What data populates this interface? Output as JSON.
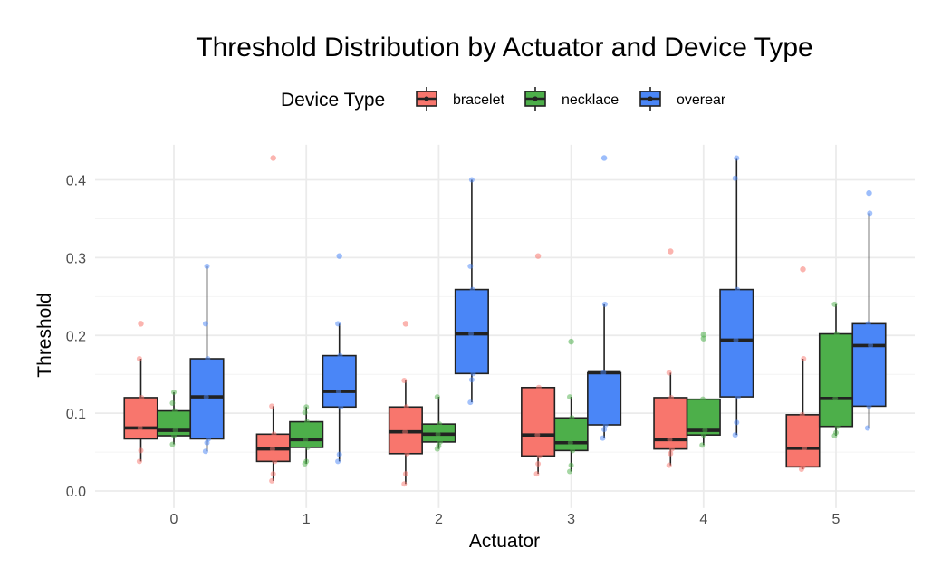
{
  "chart_data": {
    "type": "boxplot",
    "title": "Threshold Distribution by Actuator and Device Type",
    "xlabel": "Actuator",
    "ylabel": "Threshold",
    "categories": [
      "0",
      "1",
      "2",
      "3",
      "4",
      "5"
    ],
    "y_ticks": [
      "0.0",
      "0.1",
      "0.2",
      "0.3",
      "0.4"
    ],
    "ylim": [
      -0.022,
      0.445
    ],
    "grid": true,
    "legend": {
      "title": "Device Type",
      "position": "top"
    },
    "colors": {
      "bracelet": "#F8766D",
      "necklace": "#4DAF4A",
      "overear": "#4A86F7",
      "line": "#222222",
      "grid": "#EBEBEB"
    },
    "series": [
      {
        "name": "bracelet",
        "boxes": [
          {
            "min": 0.038,
            "q1": 0.067,
            "median": 0.081,
            "q3": 0.12,
            "max": 0.17,
            "outliers": [
              0.215
            ]
          },
          {
            "min": 0.013,
            "q1": 0.038,
            "median": 0.054,
            "q3": 0.073,
            "max": 0.109,
            "outliers": [
              0.428
            ]
          },
          {
            "min": 0.009,
            "q1": 0.048,
            "median": 0.076,
            "q3": 0.108,
            "max": 0.142,
            "outliers": [
              0.215
            ]
          },
          {
            "min": 0.022,
            "q1": 0.045,
            "median": 0.072,
            "q3": 0.133,
            "max": 0.133,
            "outliers": [
              0.302
            ]
          },
          {
            "min": 0.033,
            "q1": 0.054,
            "median": 0.066,
            "q3": 0.12,
            "max": 0.152,
            "outliers": [
              0.308
            ]
          },
          {
            "min": 0.028,
            "q1": 0.031,
            "median": 0.055,
            "q3": 0.098,
            "max": 0.17,
            "outliers": [
              0.285
            ]
          }
        ],
        "points": [
          [
            0.038,
            0.052,
            0.074,
            0.081,
            0.12,
            0.17,
            0.215
          ],
          [
            0.013,
            0.022,
            0.038,
            0.054,
            0.073,
            0.109,
            0.428
          ],
          [
            0.009,
            0.022,
            0.048,
            0.076,
            0.108,
            0.142,
            0.215
          ],
          [
            0.022,
            0.035,
            0.045,
            0.072,
            0.133,
            0.302
          ],
          [
            0.033,
            0.048,
            0.054,
            0.066,
            0.12,
            0.152,
            0.308
          ],
          [
            0.028,
            0.031,
            0.055,
            0.098,
            0.17,
            0.285
          ]
        ]
      },
      {
        "name": "necklace",
        "boxes": [
          {
            "min": 0.06,
            "q1": 0.071,
            "median": 0.078,
            "q3": 0.103,
            "max": 0.127,
            "outliers": []
          },
          {
            "min": 0.035,
            "q1": 0.056,
            "median": 0.066,
            "q3": 0.089,
            "max": 0.108,
            "outliers": []
          },
          {
            "min": 0.054,
            "q1": 0.063,
            "median": 0.073,
            "q3": 0.086,
            "max": 0.121,
            "outliers": []
          },
          {
            "min": 0.025,
            "q1": 0.052,
            "median": 0.062,
            "q3": 0.094,
            "max": 0.121,
            "outliers": [
              0.192
            ]
          },
          {
            "min": 0.059,
            "q1": 0.072,
            "median": 0.078,
            "q3": 0.118,
            "max": 0.118,
            "outliers": [
              0.196,
              0.201
            ]
          },
          {
            "min": 0.071,
            "q1": 0.083,
            "median": 0.119,
            "q3": 0.202,
            "max": 0.24,
            "outliers": []
          }
        ],
        "points": [
          [
            0.06,
            0.071,
            0.078,
            0.09,
            0.103,
            0.113,
            0.127
          ],
          [
            0.035,
            0.038,
            0.056,
            0.066,
            0.089,
            0.101,
            0.108
          ],
          [
            0.054,
            0.058,
            0.063,
            0.073,
            0.086,
            0.121
          ],
          [
            0.025,
            0.033,
            0.052,
            0.062,
            0.094,
            0.121,
            0.192
          ],
          [
            0.059,
            0.072,
            0.078,
            0.118,
            0.196,
            0.201
          ],
          [
            0.071,
            0.075,
            0.083,
            0.119,
            0.202,
            0.24
          ]
        ]
      },
      {
        "name": "overear",
        "boxes": [
          {
            "min": 0.051,
            "q1": 0.067,
            "median": 0.121,
            "q3": 0.17,
            "max": 0.289,
            "outliers": []
          },
          {
            "min": 0.038,
            "q1": 0.108,
            "median": 0.128,
            "q3": 0.174,
            "max": 0.215,
            "outliers": [
              0.302
            ]
          },
          {
            "min": 0.114,
            "q1": 0.151,
            "median": 0.202,
            "q3": 0.259,
            "max": 0.4,
            "outliers": []
          },
          {
            "min": 0.068,
            "q1": 0.085,
            "median": 0.152,
            "q3": 0.152,
            "max": 0.24,
            "outliers": [
              0.428
            ]
          },
          {
            "min": 0.072,
            "q1": 0.121,
            "median": 0.194,
            "q3": 0.259,
            "max": 0.428,
            "outliers": []
          },
          {
            "min": 0.081,
            "q1": 0.109,
            "median": 0.187,
            "q3": 0.215,
            "max": 0.357,
            "outliers": [
              0.383
            ]
          }
        ],
        "points": [
          [
            0.051,
            0.062,
            0.067,
            0.121,
            0.17,
            0.215,
            0.289
          ],
          [
            0.038,
            0.047,
            0.108,
            0.128,
            0.174,
            0.215,
            0.302
          ],
          [
            0.114,
            0.143,
            0.151,
            0.202,
            0.259,
            0.289,
            0.4
          ],
          [
            0.068,
            0.079,
            0.085,
            0.152,
            0.24,
            0.428
          ],
          [
            0.072,
            0.088,
            0.121,
            0.194,
            0.259,
            0.402,
            0.428
          ],
          [
            0.081,
            0.109,
            0.187,
            0.215,
            0.357,
            0.383
          ]
        ]
      }
    ]
  }
}
